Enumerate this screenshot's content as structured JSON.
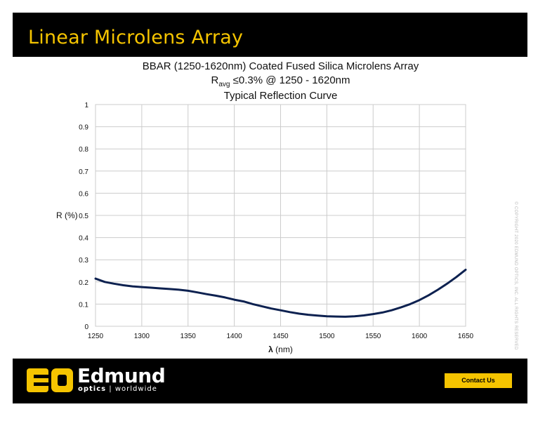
{
  "header": {
    "title": "Linear Microlens Array"
  },
  "colors": {
    "accent": "#f5c400",
    "curve": "#0d2150",
    "grid": "#cccccc"
  },
  "chart_data": {
    "type": "line",
    "title_line1": "BBAR (1250-1620nm) Coated Fused Silica Microlens Array",
    "title_line2_prefix": "R",
    "title_line2_sub": "avg",
    "title_line2_suffix": " ≤0.3% @ 1250 - 1620nm",
    "title_line3": "Typical Reflection Curve",
    "ylabel": "R (%)",
    "xlabel_symbol": "λ",
    "xlabel_unit": " (nm)",
    "xlim": [
      1250,
      1650
    ],
    "ylim": [
      0,
      1
    ],
    "xticks": [
      "1250",
      "1300",
      "1350",
      "1400",
      "1450",
      "1500",
      "1550",
      "1600",
      "1650"
    ],
    "yticks": [
      "0",
      "0.1",
      "0.2",
      "0.3",
      "0.4",
      "0.5",
      "0.6",
      "0.7",
      "0.8",
      "0.9",
      "1"
    ],
    "grid": true,
    "series": [
      {
        "x": [
          1250,
          1260,
          1270,
          1280,
          1290,
          1300,
          1310,
          1320,
          1330,
          1340,
          1350,
          1360,
          1370,
          1380,
          1390,
          1400,
          1410,
          1420,
          1430,
          1440,
          1450,
          1460,
          1470,
          1480,
          1490,
          1500,
          1510,
          1520,
          1530,
          1540,
          1550,
          1560,
          1570,
          1580,
          1590,
          1600,
          1610,
          1620,
          1630,
          1640,
          1650
        ],
        "y": [
          0.215,
          0.2,
          0.192,
          0.185,
          0.18,
          0.177,
          0.174,
          0.171,
          0.168,
          0.165,
          0.16,
          0.153,
          0.145,
          0.138,
          0.13,
          0.12,
          0.112,
          0.1,
          0.09,
          0.08,
          0.072,
          0.064,
          0.057,
          0.052,
          0.048,
          0.045,
          0.044,
          0.043,
          0.045,
          0.049,
          0.055,
          0.062,
          0.072,
          0.085,
          0.1,
          0.118,
          0.14,
          0.165,
          0.192,
          0.222,
          0.255
        ]
      }
    ]
  },
  "copyright": "© COPYRIGHT 2020 EDMUND OPTICS, INC. ALL RIGHTS RESERVED",
  "footer": {
    "logo_name": "Edmund",
    "logo_tag_bold": "optics",
    "logo_tag_rest": " | worldwide",
    "contact_label": "Contact Us"
  }
}
